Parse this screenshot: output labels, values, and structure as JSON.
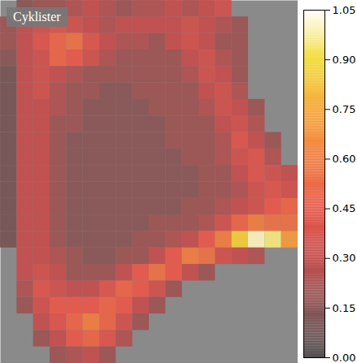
{
  "chart_data": {
    "type": "heatmap",
    "title": "Cyklister",
    "tick_labels": false,
    "cells": [
      [
        null,
        0.15,
        0.2,
        0.2,
        0.25,
        0.3,
        0.25,
        0.2,
        0.25,
        0.25,
        0.3,
        0.25,
        0.3,
        0.35,
        null,
        null,
        null,
        null
      ],
      [
        0.2,
        0.3,
        0.35,
        0.4,
        0.35,
        0.3,
        0.25,
        0.3,
        0.3,
        0.3,
        0.3,
        0.35,
        0.3,
        0.25,
        0.2,
        null,
        null,
        null
      ],
      [
        0.2,
        0.3,
        0.4,
        0.5,
        0.55,
        0.4,
        0.3,
        0.25,
        0.25,
        0.2,
        0.3,
        0.35,
        0.3,
        0.2,
        0.2,
        null,
        null,
        null
      ],
      [
        0.15,
        0.3,
        0.35,
        0.5,
        0.45,
        0.35,
        0.25,
        0.2,
        0.2,
        0.2,
        0.2,
        0.3,
        0.35,
        0.25,
        0.2,
        null,
        null,
        null
      ],
      [
        0.1,
        0.3,
        0.35,
        0.3,
        0.25,
        0.2,
        0.2,
        0.2,
        0.2,
        0.2,
        0.2,
        0.25,
        0.35,
        0.3,
        0.2,
        null,
        null,
        null
      ],
      [
        0.1,
        0.3,
        0.35,
        0.25,
        0.2,
        0.2,
        0.15,
        0.15,
        0.2,
        0.2,
        0.2,
        0.2,
        0.3,
        0.35,
        0.25,
        null,
        null,
        null
      ],
      [
        0.1,
        0.3,
        0.3,
        0.25,
        0.2,
        0.15,
        0.15,
        0.15,
        0.15,
        0.2,
        0.2,
        0.2,
        0.25,
        0.35,
        0.3,
        0.2,
        null,
        null
      ],
      [
        0.1,
        0.3,
        0.3,
        0.2,
        0.2,
        0.15,
        0.15,
        0.15,
        0.15,
        0.15,
        0.2,
        0.2,
        0.2,
        0.3,
        0.35,
        0.25,
        null,
        null
      ],
      [
        0.1,
        0.3,
        0.3,
        0.2,
        0.15,
        0.15,
        0.15,
        0.15,
        0.15,
        0.15,
        0.2,
        0.2,
        0.2,
        0.25,
        0.4,
        0.3,
        0.2,
        null
      ],
      [
        0.1,
        0.3,
        0.3,
        0.2,
        0.15,
        0.15,
        0.15,
        0.15,
        0.15,
        0.15,
        0.15,
        0.2,
        0.2,
        0.25,
        0.35,
        0.4,
        0.25,
        null
      ],
      [
        0.1,
        0.3,
        0.3,
        0.2,
        0.15,
        0.15,
        0.15,
        0.15,
        0.15,
        0.15,
        0.15,
        0.15,
        0.2,
        0.2,
        0.3,
        0.4,
        0.35,
        0.3
      ],
      [
        0.1,
        0.3,
        0.3,
        0.2,
        0.15,
        0.15,
        0.15,
        0.15,
        0.15,
        0.15,
        0.15,
        0.15,
        0.2,
        0.2,
        0.25,
        0.35,
        0.4,
        0.35
      ],
      [
        0.1,
        0.3,
        0.3,
        0.2,
        0.15,
        0.15,
        0.15,
        0.15,
        0.15,
        0.15,
        0.15,
        0.2,
        0.2,
        0.25,
        0.3,
        0.35,
        0.45,
        0.5
      ],
      [
        0.1,
        0.3,
        0.3,
        0.2,
        0.15,
        0.15,
        0.15,
        0.15,
        0.15,
        0.2,
        0.2,
        0.2,
        0.25,
        0.35,
        0.5,
        0.6,
        0.55,
        0.55
      ],
      [
        0.1,
        0.3,
        0.3,
        0.2,
        0.15,
        0.15,
        0.15,
        0.15,
        0.2,
        0.2,
        0.25,
        0.3,
        0.45,
        0.6,
        0.85,
        1.0,
        0.95,
        0.7
      ],
      [
        null,
        0.3,
        0.3,
        0.25,
        0.2,
        0.15,
        0.15,
        0.2,
        0.2,
        0.3,
        0.45,
        0.6,
        0.55,
        0.35,
        0.3,
        0.25,
        null,
        null
      ],
      [
        null,
        0.3,
        0.35,
        0.3,
        0.2,
        0.2,
        0.2,
        0.3,
        0.45,
        0.55,
        0.45,
        0.3,
        0.2,
        null,
        null,
        null,
        null,
        null
      ],
      [
        null,
        0.25,
        0.4,
        0.35,
        0.3,
        0.3,
        0.4,
        0.5,
        0.45,
        0.35,
        0.2,
        null,
        null,
        null,
        null,
        null,
        null,
        null
      ],
      [
        null,
        0.2,
        0.35,
        0.45,
        0.45,
        0.45,
        0.5,
        0.45,
        0.3,
        0.2,
        null,
        null,
        null,
        null,
        null,
        null,
        null,
        null
      ],
      [
        null,
        null,
        0.3,
        0.4,
        0.5,
        0.6,
        0.5,
        0.35,
        0.2,
        null,
        null,
        null,
        null,
        null,
        null,
        null,
        null,
        null
      ],
      [
        null,
        null,
        0.2,
        0.3,
        0.45,
        0.5,
        0.4,
        0.25,
        null,
        null,
        null,
        null,
        null,
        null,
        null,
        null,
        null,
        null
      ],
      [
        null,
        null,
        null,
        0.2,
        0.25,
        0.3,
        0.2,
        null,
        null,
        null,
        null,
        null,
        null,
        null,
        null,
        null,
        null,
        null
      ]
    ],
    "colorbar": {
      "range": [
        0,
        1.05
      ],
      "ticks": [
        {
          "value": 0,
          "label": "0.00"
        },
        {
          "value": 0.15,
          "label": "0.15"
        },
        {
          "value": 0.3,
          "label": "0.30"
        },
        {
          "value": 0.45,
          "label": "0.45"
        },
        {
          "value": 0.6,
          "label": "0.60"
        },
        {
          "value": 0.75,
          "label": "0.75"
        },
        {
          "value": 0.9,
          "label": "0.90"
        },
        {
          "value": 1.05,
          "label": "1.05"
        }
      ]
    }
  }
}
